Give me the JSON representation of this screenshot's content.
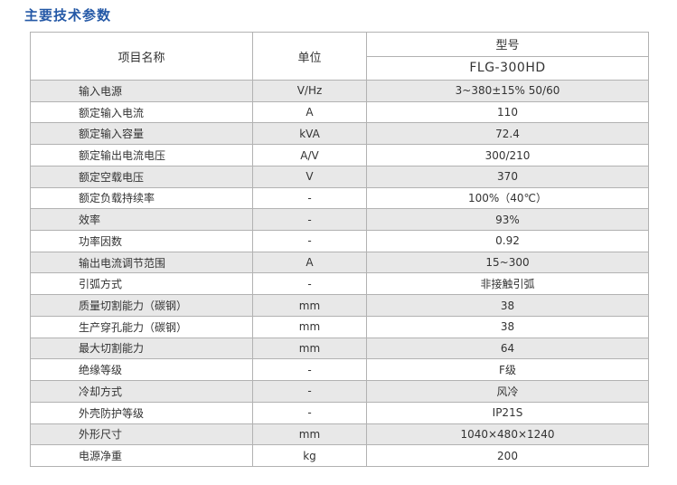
{
  "page_title": "主要技术参数",
  "colors": {
    "title_blue": "#2458a6",
    "row_alt_gray": "#e8e8e8",
    "border_gray": "#b2b2b2",
    "text": "#333333"
  },
  "table": {
    "headers": {
      "item": "项目名称",
      "unit": "单位",
      "model_group": "型号",
      "model": "FLG-300HD"
    },
    "rows": [
      {
        "item": "输入电源",
        "unit": "V/Hz",
        "value": "3~380±15%  50/60"
      },
      {
        "item": "额定输入电流",
        "unit": "A",
        "value": "110"
      },
      {
        "item": "额定输入容量",
        "unit": "kVA",
        "value": "72.4"
      },
      {
        "item": "额定输出电流电压",
        "unit": "A/V",
        "value": "300/210"
      },
      {
        "item": "额定空载电压",
        "unit": "V",
        "value": "370"
      },
      {
        "item": "额定负载持续率",
        "unit": "-",
        "value": "100%（40℃）"
      },
      {
        "item": "效率",
        "unit": "-",
        "value": "93%"
      },
      {
        "item": "功率因数",
        "unit": "-",
        "value": "0.92"
      },
      {
        "item": "输出电流调节范围",
        "unit": "A",
        "value": "15~300"
      },
      {
        "item": "引弧方式",
        "unit": "-",
        "value": "非接触引弧"
      },
      {
        "item": "质量切割能力（碳钢）",
        "unit": "mm",
        "value": "38"
      },
      {
        "item": "生产穿孔能力（碳钢）",
        "unit": "mm",
        "value": "38"
      },
      {
        "item": "最大切割能力",
        "unit": "mm",
        "value": "64"
      },
      {
        "item": "绝缘等级",
        "unit": "-",
        "value": "F级"
      },
      {
        "item": "冷却方式",
        "unit": "-",
        "value": "风冷"
      },
      {
        "item": "外壳防护等级",
        "unit": "-",
        "value": "IP21S"
      },
      {
        "item": "外形尺寸",
        "unit": "mm",
        "value": "1040×480×1240"
      },
      {
        "item": "电源净重",
        "unit": "kg",
        "value": "200"
      }
    ]
  }
}
